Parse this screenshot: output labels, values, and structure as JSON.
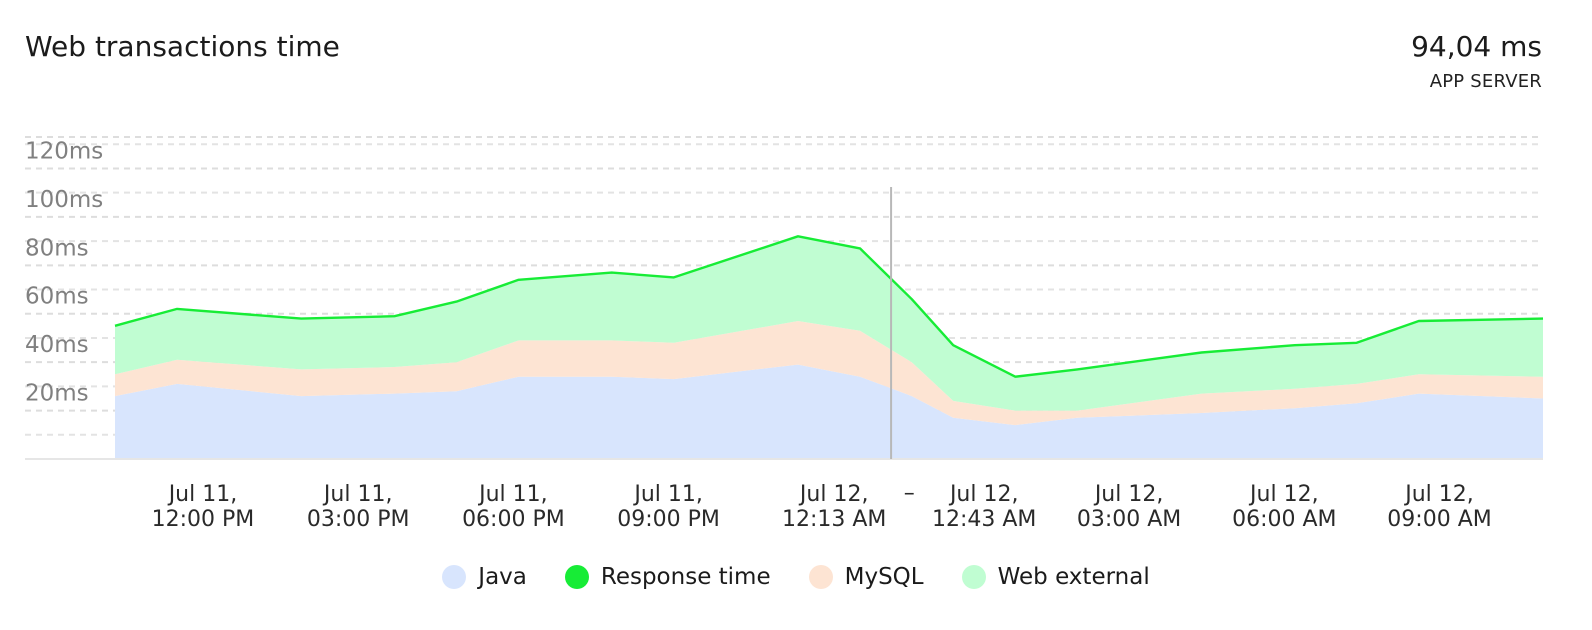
{
  "header": {
    "title": "Web transactions time",
    "stat_value": "94,04 ms",
    "stat_label": "APP SERVER"
  },
  "colors": {
    "java": "#d8e5fd",
    "mysql": "#fde4d3",
    "web_external": "#c0fdd2",
    "response_time": "#17ec36",
    "grid": "#dddddd",
    "cursor": "#b8b8b8"
  },
  "chart_data": {
    "type": "area",
    "title": "Web transactions time",
    "stacked": true,
    "ylim": [
      0,
      133
    ],
    "yticks": [
      20,
      40,
      60,
      80,
      100,
      120
    ],
    "ytick_labels": [
      "20ms",
      "40ms",
      "60ms",
      "80ms",
      "100ms",
      "120ms"
    ],
    "x_hours": [
      0,
      1.2,
      3.6,
      5.4,
      6.6,
      7.8,
      9.6,
      10.8,
      13.2,
      14.4,
      15.4,
      16.2,
      17.4,
      18.6,
      21.0,
      22.8,
      24.0,
      25.2,
      27.6
    ],
    "xticks": [
      {
        "hours": 1.7,
        "line1": "Jul 11,",
        "line2": "12:00 PM"
      },
      {
        "hours": 4.7,
        "line1": "Jul 11,",
        "line2": "03:00 PM"
      },
      {
        "hours": 7.7,
        "line1": "Jul 11,",
        "line2": "06:00 PM"
      },
      {
        "hours": 10.7,
        "line1": "Jul 11,",
        "line2": "09:00 PM"
      },
      {
        "hours": 13.9,
        "line1": "Jul 12,",
        "line2": "12:13 AM"
      },
      {
        "hours": 16.8,
        "line1": "Jul 12,",
        "line2": "12:43 AM"
      },
      {
        "hours": 19.6,
        "line1": "Jul 12,",
        "line2": "03:00 AM"
      },
      {
        "hours": 22.6,
        "line1": "Jul 12,",
        "line2": "06:00 AM"
      },
      {
        "hours": 25.6,
        "line1": "Jul 12,",
        "line2": "09:00 AM"
      }
    ],
    "range_separator": "–",
    "cursor_hours": 15.0,
    "series": [
      {
        "name": "Java",
        "values": [
          26,
          31,
          26,
          27,
          28,
          34,
          34,
          33,
          39,
          34,
          26,
          17,
          14,
          17,
          19,
          21,
          23,
          27,
          25
        ]
      },
      {
        "name": "MySQL",
        "values": [
          9,
          10,
          11,
          11,
          12,
          15,
          15,
          15,
          18,
          19,
          14,
          7,
          6,
          3,
          8,
          8,
          8,
          8,
          9
        ]
      },
      {
        "name": "Web external",
        "values": [
          20,
          21,
          21,
          21,
          25,
          25,
          28,
          27,
          35,
          34,
          26,
          23,
          14,
          17,
          17,
          18,
          17,
          22,
          24
        ]
      }
    ],
    "response_time": {
      "name": "Response time",
      "values": [
        55,
        62,
        58,
        59,
        65,
        74,
        77,
        75,
        92,
        87,
        66,
        47,
        34,
        37,
        44,
        47,
        48,
        57,
        58
      ]
    },
    "legend": [
      {
        "key": "java",
        "label": "Java"
      },
      {
        "key": "response_time",
        "label": "Response time"
      },
      {
        "key": "mysql",
        "label": "MySQL"
      },
      {
        "key": "web_external",
        "label": "Web external"
      }
    ]
  }
}
